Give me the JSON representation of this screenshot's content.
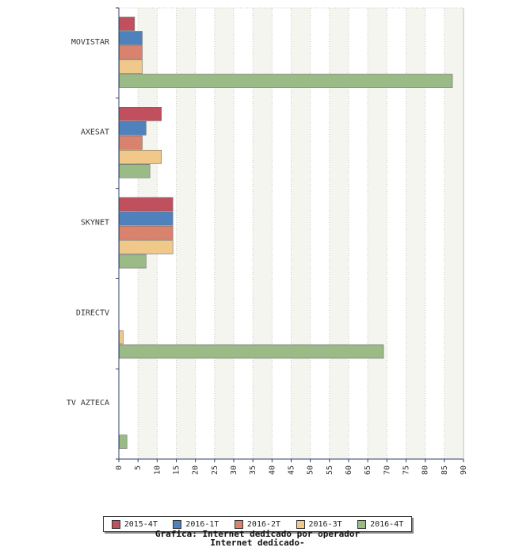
{
  "chart_data": {
    "type": "bar",
    "orientation": "horizontal",
    "title": "Grafica: Internet dedicado por operador",
    "subtitle": "Internet dedicado-",
    "xlim": [
      0,
      90
    ],
    "tick_step": 5,
    "grid": true,
    "legend_position": "bottom",
    "categories": [
      "MOVISTAR",
      "AXESAT",
      "SKYNET",
      "DIRECTV",
      "TV AZTECA"
    ],
    "series": [
      {
        "name": "2015-4T",
        "color": "#c0505e",
        "values": [
          4,
          11,
          14,
          0,
          0
        ]
      },
      {
        "name": "2016-1T",
        "color": "#4f81bd",
        "values": [
          6,
          7,
          14,
          0,
          0
        ]
      },
      {
        "name": "2016-2T",
        "color": "#d9826e",
        "values": [
          6,
          6,
          14,
          0,
          0
        ]
      },
      {
        "name": "2016-3T",
        "color": "#f0c98a",
        "values": [
          6,
          11,
          14,
          1,
          0
        ]
      },
      {
        "name": "2016-4T",
        "color": "#9bbb86",
        "values": [
          87,
          8,
          7,
          69,
          2
        ]
      }
    ]
  }
}
